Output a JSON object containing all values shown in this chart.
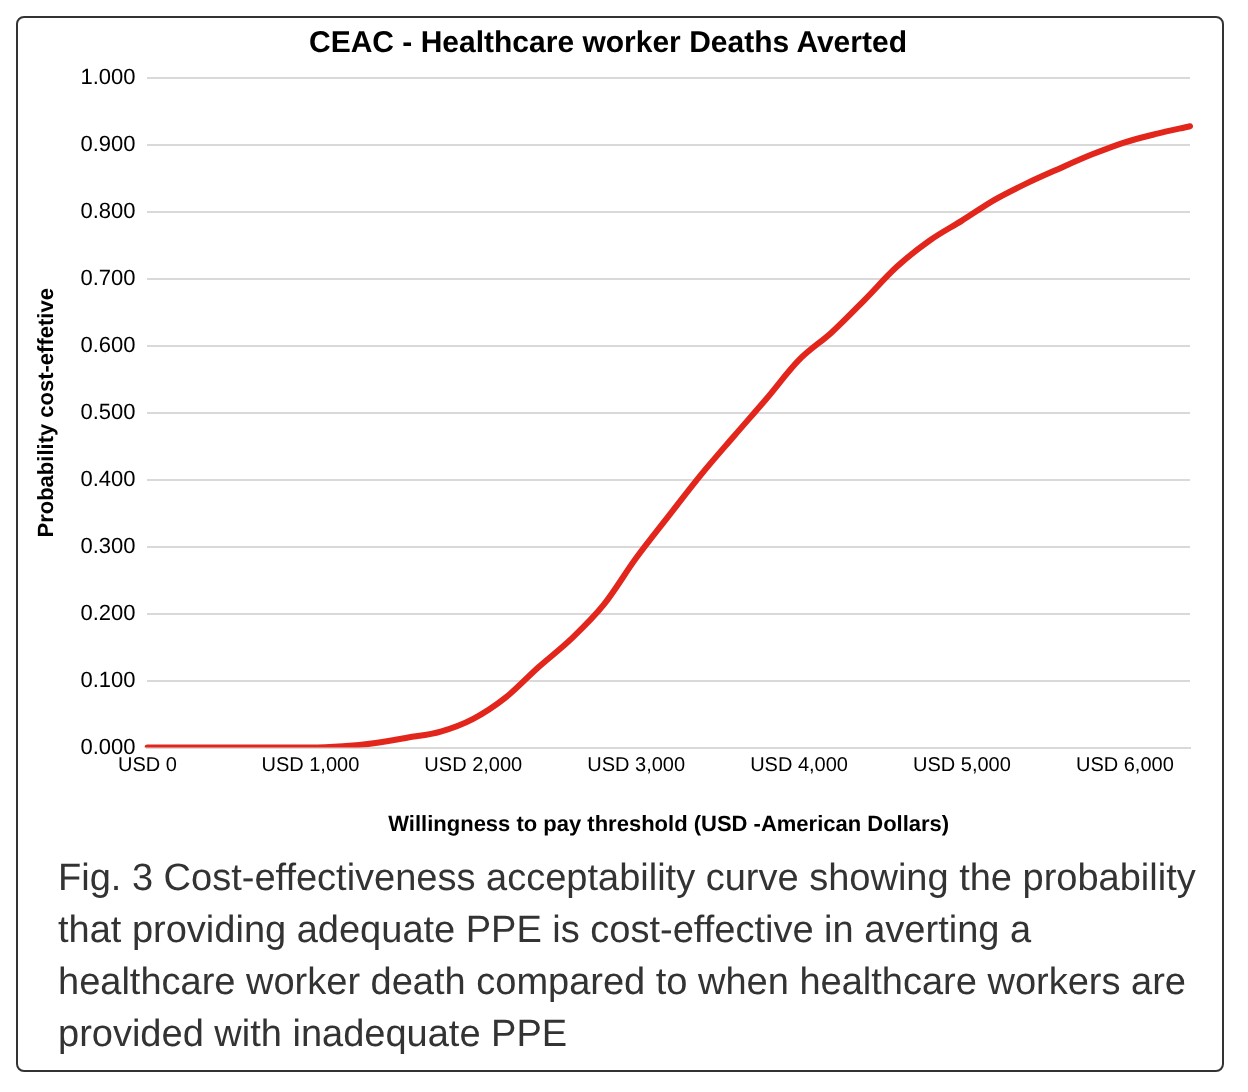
{
  "chart_data": {
    "type": "line",
    "title": "CEAC - Healthcare worker Deaths Averted",
    "xlabel": "Willingness to pay threshold (USD -American Dollars)",
    "ylabel": "Probability cost-effetive",
    "categories": [
      "USD 0",
      null,
      null,
      null,
      null,
      "USD 1,000",
      null,
      null,
      null,
      null,
      "USD 2,000",
      null,
      null,
      null,
      null,
      "USD 3,000",
      null,
      null,
      null,
      null,
      "USD 4,000",
      null,
      null,
      null,
      null,
      "USD 5,000",
      null,
      null,
      null,
      null,
      "USD 6,000",
      null,
      null
    ],
    "series": [
      {
        "color": "#e3261c",
        "values": [
          0,
          0,
          0,
          0,
          0,
          0,
          0.002,
          0.007,
          0.015,
          0.024,
          0.043,
          0.075,
          0.12,
          0.162,
          0.213,
          0.283,
          0.346,
          0.408,
          0.465,
          0.521,
          0.579,
          0.62,
          0.668,
          0.718,
          0.757,
          0.787,
          0.818,
          0.843,
          0.865,
          0.886,
          0.904,
          0.917,
          0.928
        ]
      }
    ],
    "ylim": [
      0,
      1
    ],
    "yticks": [
      {
        "value": 0,
        "label": "0.000"
      },
      {
        "value": 0.1,
        "label": "0.100"
      },
      {
        "value": 0.2,
        "label": "0.200"
      },
      {
        "value": 0.3,
        "label": "0.300"
      },
      {
        "value": 0.4,
        "label": "0.400"
      },
      {
        "value": 0.5,
        "label": "0.500"
      },
      {
        "value": 0.6,
        "label": "0.600"
      },
      {
        "value": 0.7,
        "label": "0.700"
      },
      {
        "value": 0.8,
        "label": "0.800"
      },
      {
        "value": 0.9,
        "label": "0.900"
      },
      {
        "value": 1,
        "label": "1.000"
      }
    ],
    "grid": "y",
    "legend": false,
    "marker": "none",
    "line_style": "solid",
    "annotations": [
      "Fig. 3 Cost-effectiveness acceptability curve showing the probability that providing adequate PPE is cost-effective in averting a healthcare worker death compared to when healthcare workers are provided with inadequate PPE"
    ]
  }
}
